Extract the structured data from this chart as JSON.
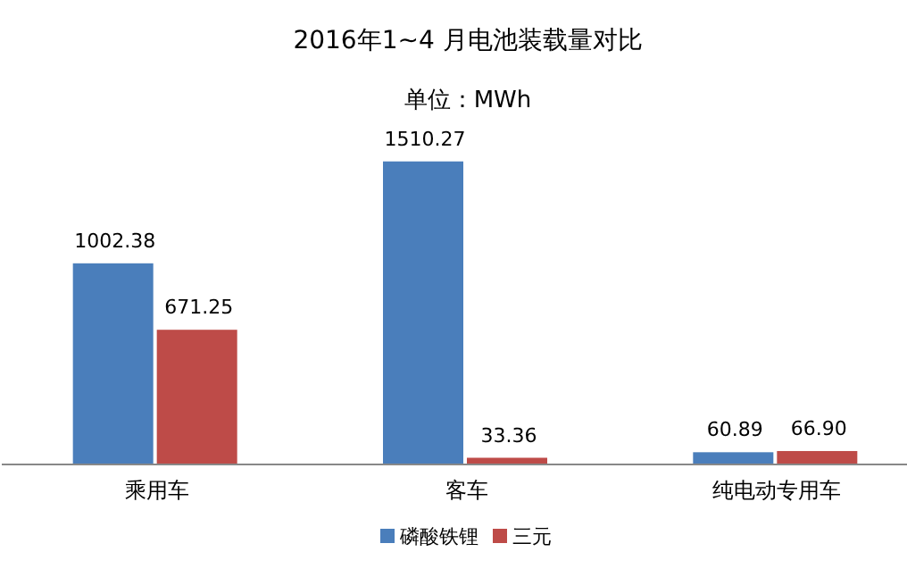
{
  "chart_data": {
    "type": "bar",
    "title": "2016年1~4 月电池装载量对比",
    "subtitle": "单位：MWh",
    "categories": [
      "乘用车",
      "客车",
      "纯电动专用车"
    ],
    "series": [
      {
        "name": "磷酸铁锂",
        "color": "#4a7ebb",
        "values": [
          1002.38,
          1510.27,
          60.89
        ],
        "value_labels": [
          "1002.38",
          "1510.27",
          "60.89"
        ]
      },
      {
        "name": "三元",
        "color": "#be4b48",
        "values": [
          671.25,
          33.36,
          66.9
        ],
        "value_labels": [
          "671.25",
          "33.36",
          "66.90"
        ]
      }
    ],
    "legend": "bottom"
  }
}
